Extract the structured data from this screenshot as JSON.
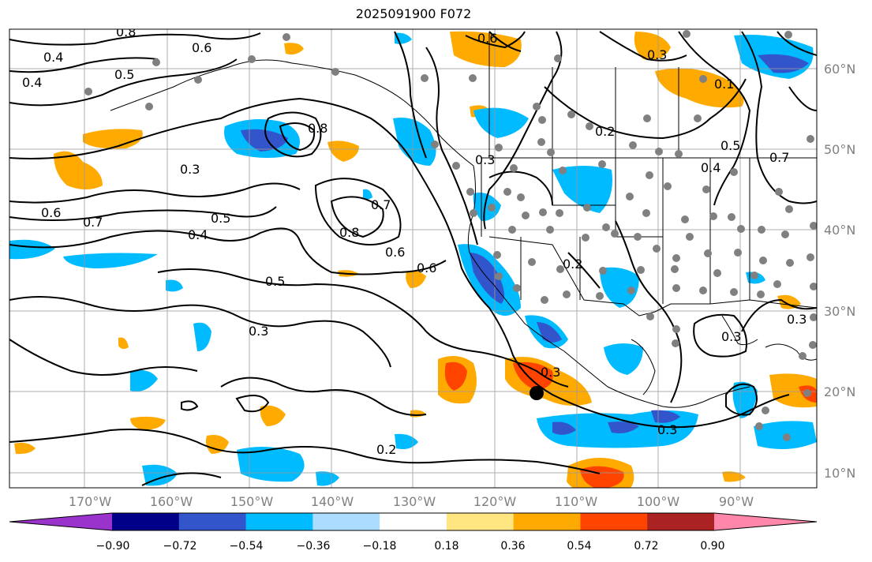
{
  "title": "2025091900 F072",
  "lat_labels": [
    "60°N",
    "50°N",
    "40°N",
    "30°N",
    "20°N",
    "10°N"
  ],
  "lon_labels": [
    "170°W",
    "160°W",
    "150°W",
    "140°W",
    "130°W",
    "120°W",
    "110°W",
    "100°W",
    "90°W"
  ],
  "colorbar": {
    "ticks": [
      "−0.90",
      "−0.72",
      "−0.54",
      "−0.36",
      "−0.18",
      "0.18",
      "0.36",
      "0.54",
      "0.72",
      "0.90"
    ],
    "colors": [
      "#9933cc",
      "#000088",
      "#3355cc",
      "#00bbff",
      "#aaddff",
      "#ffffff",
      "#ffe680",
      "#ffaa00",
      "#ff4400",
      "#aa2222",
      "#ff88aa"
    ]
  },
  "contour_labels": [
    "0.8",
    "0.6",
    "0.6",
    "0.4",
    "0.4",
    "0.5",
    "0.3",
    "0.6",
    "0.7",
    "0.4",
    "0.5",
    "0.8",
    "0.7",
    "0.8",
    "0.6",
    "0.6",
    "0.5",
    "0.3",
    "0.2",
    "0.3",
    "0.2",
    "0.3",
    "0.5",
    "0.4",
    "0.1",
    "0.2",
    "0.3",
    "0.3",
    "0.3",
    "0.7",
    "0.3"
  ],
  "location_marker": "black-dot",
  "colors": {
    "land_outline": "#000000",
    "grid": "#999999",
    "station": "#808080"
  }
}
